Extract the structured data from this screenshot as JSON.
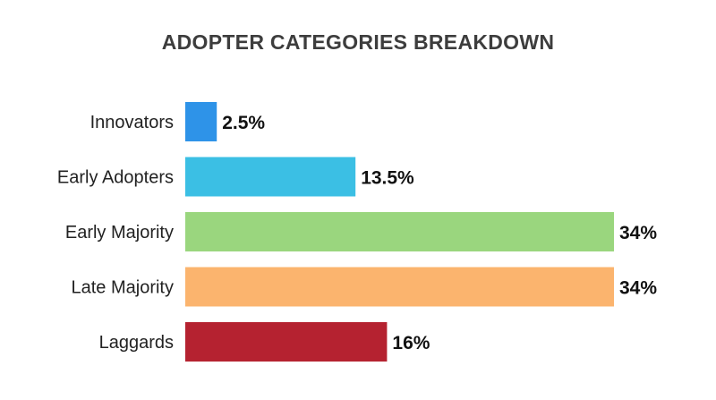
{
  "chart_data": {
    "type": "bar",
    "orientation": "horizontal",
    "title": "ADOPTER CATEGORIES BREAKDOWN",
    "categories": [
      "Innovators",
      "Early Adopters",
      "Early Majority",
      "Late Majority",
      "Laggards"
    ],
    "values": [
      2.5,
      13.5,
      34,
      34,
      16
    ],
    "value_labels": [
      "2.5%",
      "13.5%",
      "34%",
      "34%",
      "16%"
    ],
    "colors": [
      "#2e93e8",
      "#3bbfe4",
      "#9ad67e",
      "#fbb46e",
      "#b52230"
    ],
    "xlabel": "",
    "ylabel": "",
    "xlim": [
      0,
      34
    ],
    "grid": false,
    "legend": "none"
  }
}
